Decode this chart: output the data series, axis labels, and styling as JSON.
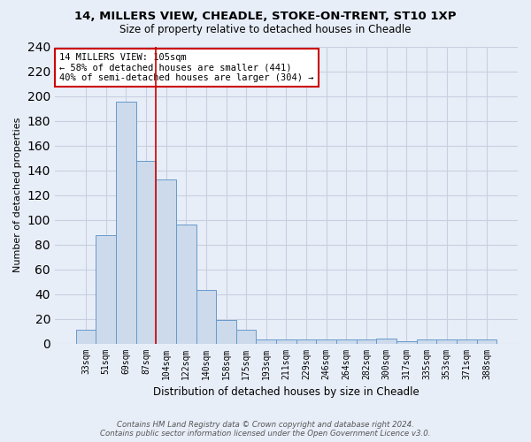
{
  "title_line1": "14, MILLERS VIEW, CHEADLE, STOKE-ON-TRENT, ST10 1XP",
  "title_line2": "Size of property relative to detached houses in Cheadle",
  "xlabel": "Distribution of detached houses by size in Cheadle",
  "ylabel": "Number of detached properties",
  "categories": [
    "33sqm",
    "51sqm",
    "69sqm",
    "87sqm",
    "104sqm",
    "122sqm",
    "140sqm",
    "158sqm",
    "175sqm",
    "193sqm",
    "211sqm",
    "229sqm",
    "246sqm",
    "264sqm",
    "282sqm",
    "300sqm",
    "317sqm",
    "335sqm",
    "353sqm",
    "371sqm",
    "388sqm"
  ],
  "values": [
    11,
    88,
    196,
    148,
    133,
    96,
    43,
    19,
    11,
    3,
    3,
    3,
    3,
    3,
    3,
    4,
    2,
    3,
    3,
    3,
    3
  ],
  "bar_color": "#ccdaeb",
  "bar_edge_color": "#6699cc",
  "vline_x_index": 3.5,
  "vline_color": "#cc0000",
  "annotation_text": "14 MILLERS VIEW: 105sqm\n← 58% of detached houses are smaller (441)\n40% of semi-detached houses are larger (304) →",
  "annotation_box_color": "white",
  "annotation_box_edge_color": "#cc0000",
  "footer_text": "Contains HM Land Registry data © Crown copyright and database right 2024.\nContains public sector information licensed under the Open Government Licence v3.0.",
  "ylim": [
    0,
    240
  ],
  "yticks": [
    0,
    20,
    40,
    60,
    80,
    100,
    120,
    140,
    160,
    180,
    200,
    220,
    240
  ],
  "background_color": "#e8eef8",
  "grid_color": "#c8d0e0",
  "title_fontsize": 9.5,
  "subtitle_fontsize": 8.5
}
